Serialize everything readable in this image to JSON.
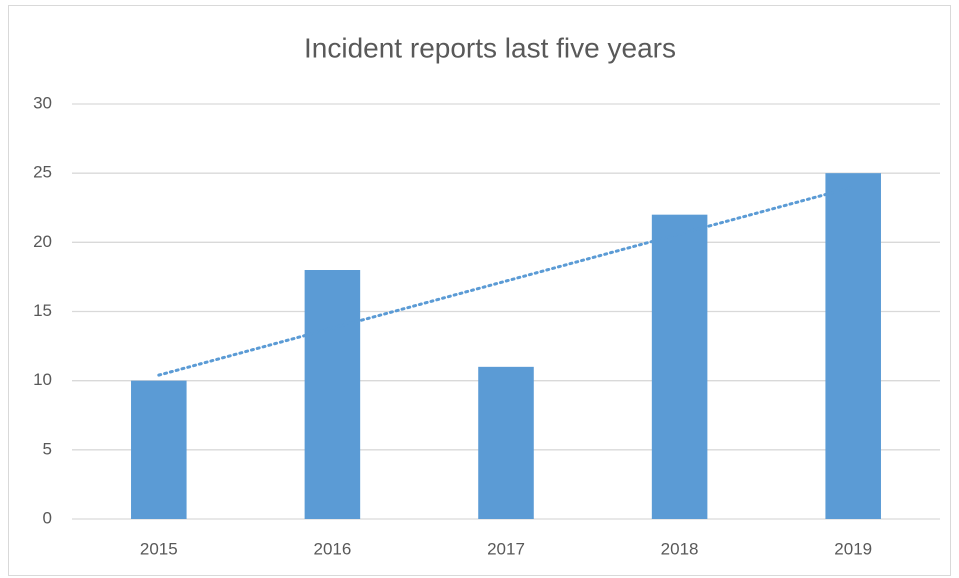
{
  "chart_data": {
    "type": "bar",
    "title": "Incident reports last five years",
    "categories": [
      "2015",
      "2016",
      "2017",
      "2018",
      "2019"
    ],
    "values": [
      10,
      18,
      11,
      22,
      25
    ],
    "color": "#5b9bd5",
    "ylim": [
      0,
      30
    ],
    "yticks": [
      0,
      5,
      10,
      15,
      20,
      25,
      30
    ],
    "grid": true,
    "trendline": "linear"
  }
}
